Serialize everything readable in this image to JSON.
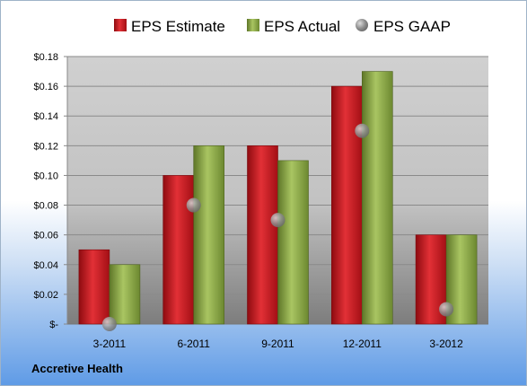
{
  "company": "Accretive Health",
  "chart_data": {
    "type": "bar",
    "title": "",
    "categories": [
      "3-2011",
      "6-2011",
      "9-2011",
      "12-2011",
      "3-2012"
    ],
    "series": [
      {
        "name": "EPS Estimate",
        "values": [
          0.05,
          0.1,
          0.12,
          0.16,
          0.06
        ],
        "color": "#c0151b"
      },
      {
        "name": "EPS Actual",
        "values": [
          0.04,
          0.12,
          0.11,
          0.17,
          0.06
        ],
        "color": "#7f9d3a"
      }
    ],
    "markers": {
      "name": "EPS GAAP",
      "values": [
        0.0,
        0.08,
        0.07,
        0.13,
        0.01
      ],
      "color": "#9a9a9a"
    },
    "ylim": [
      0,
      0.18
    ],
    "yticks": [
      "$-",
      "$0.02",
      "$0.04",
      "$0.06",
      "$0.08",
      "$0.10",
      "$0.12",
      "$0.14",
      "$0.16",
      "$0.18"
    ],
    "legend_position": "top",
    "grid": true
  }
}
